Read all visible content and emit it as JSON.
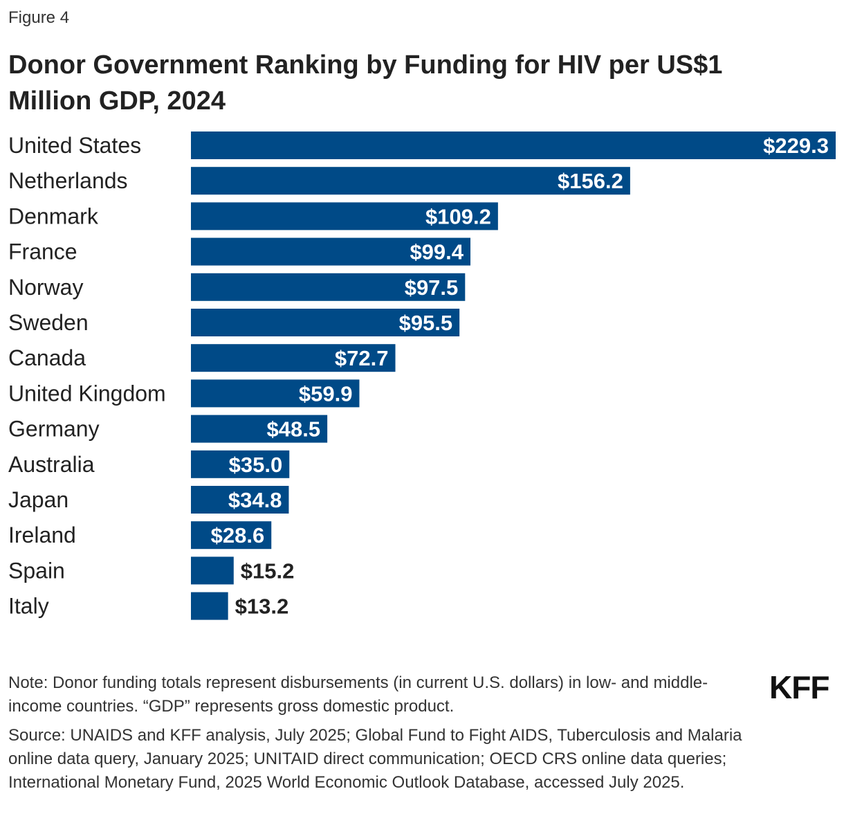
{
  "figure_label": "Figure 4",
  "logo_text": "KFF",
  "note": "Note: Donor funding totals represent disbursements (in current U.S. dollars) in low- and middle-income countries. “GDP” represents gross domestic product.",
  "source": "Source: UNAIDS and KFF analysis, July 2025; Global Fund to Fight AIDS, Tuberculosis and Malaria online data query, January 2025; UNITAID direct communication; OECD CRS online data queries; International Monetary Fund, 2025 World Economic Outlook Database, accessed July 2025.",
  "colors": {
    "bar": "#004A87",
    "label_inside": "#ffffff",
    "label_outside": "#222222"
  },
  "chart_data": {
    "type": "bar",
    "orientation": "horizontal",
    "title": "Donor Government Ranking by Funding for HIV per US$1 Million GDP, 2024",
    "xlabel": "",
    "ylabel": "",
    "xlim": [
      0,
      229.3
    ],
    "grid": false,
    "legend": "none",
    "categories": [
      "United States",
      "Netherlands",
      "Denmark",
      "France",
      "Norway",
      "Sweden",
      "Canada",
      "United Kingdom",
      "Germany",
      "Australia",
      "Japan",
      "Ireland",
      "Spain",
      "Italy"
    ],
    "values": [
      229.3,
      156.2,
      109.2,
      99.4,
      97.5,
      95.5,
      72.7,
      59.9,
      48.5,
      35.0,
      34.8,
      28.6,
      15.2,
      13.2
    ],
    "value_labels": [
      "$229.3",
      "$156.2",
      "$109.2",
      "$99.4",
      "$97.5",
      "$95.5",
      "$72.7",
      "$59.9",
      "$48.5",
      "$35.0",
      "$34.8",
      "$28.6",
      "$15.2",
      "$13.2"
    ]
  }
}
